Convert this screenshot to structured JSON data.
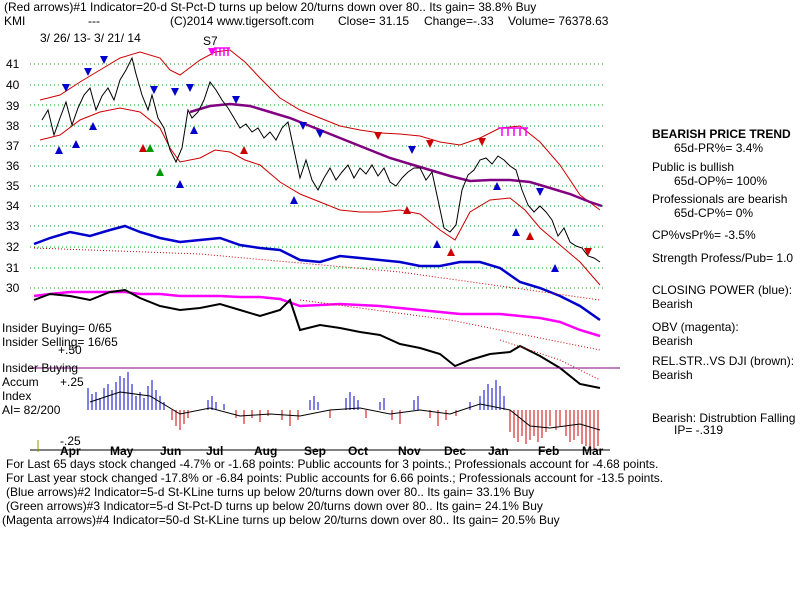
{
  "header": {
    "line1": "(Red arrows)#1 Indicator=20-d St-Pct-D turns up below 20/turns down over 80.. Its gain= 38.8% Buy",
    "ticker": "KMI",
    "dashes": "---",
    "copyright": "(C)2014 www.tigersoft.com",
    "close": "Close=  31.15",
    "change": "Change=-.33",
    "volume": "Volume= 76378.63",
    "date_range": "3/ 26/ 13-  3/ 21/ 14",
    "marker": "S7"
  },
  "side_panel": {
    "title": "BEARISH PRICE TREND",
    "pr": "65d-PR%= 3.4%",
    "public": "Public is bullish",
    "op": "65d-OP%= 100%",
    "pros": "Professionals are bearish",
    "cp": "65d-CP%= 0%",
    "cpvs": "CP%vsPr%= -3.5%",
    "strength": "Strength Profess/Pub= 1.0",
    "closing_power": "CLOSING POWER (blue):",
    "closing_power_val": "Bearish",
    "obv": "OBV (magenta):",
    "obv_val": "Bearish",
    "relstr": "REL.STR..VS DJI (brown):",
    "relstr_val": "Bearish",
    "dist": "Bearish:  Distrubtion Falling",
    "ip": "IP= -.319"
  },
  "left_labels": {
    "insider_buying": "Insider Buying= 0/65",
    "insider_selling": "Insider Selling= 16/65",
    "p50": "+.50",
    "insider_buying2": "Insider Buying",
    "accum": "Accum",
    "p25": "+.25",
    "index": "Index",
    "ai": "AI= 82/200",
    "m25": "-.25"
  },
  "footer": {
    "line1": "For Last 65 days stock changed -4.7% or -1.68 points:  Public accounts for  3 points.;  Professionals account for -4.68 points.",
    "line2": "For Last year stock changed -17.8% or -6.84 points:  Public accounts for  6.66 points.;  Professionals account for -13.5 points.",
    "line3": "(Blue arrows)#2 Indicator=5-d St-KLine turns up below 20/turns down over 80.. Its gain= 33.1% Buy",
    "line4": "(Green arrows)#3 Indicator=5-d St-Pct-D turns up below 20/turns down over 80.. Its gain= 24.1% Buy",
    "line5": "(Magenta arrows)#4 Indicator=50-d St-KLine turns up below 20/turns down over 80.. Its gain= 20.5% Buy"
  },
  "chart_data": {
    "type": "line",
    "y_ticks": [
      "41",
      "40",
      "39",
      "38",
      "37",
      "36",
      "35",
      "34",
      "33",
      "32",
      "31",
      "30"
    ],
    "months": [
      "Apr",
      "May",
      "Jun",
      "Jul",
      "Aug",
      "Sep",
      "Oct",
      "Nov",
      "Dec",
      "Jan",
      "Feb",
      "Mar"
    ],
    "ylim": [
      29.5,
      41.5
    ],
    "price_close_approx": [
      38.0,
      38.8,
      40.3,
      41.0,
      39.2,
      38.4,
      36.0,
      38.5,
      40.0,
      38.8,
      37.5,
      37.0,
      36.2,
      35.2,
      35.0,
      35.0,
      35.8,
      35.2,
      34.5,
      35.5,
      33.0,
      36.5,
      36.2,
      35.5,
      33.8,
      32.4,
      31.2,
      31.1
    ],
    "colors": {
      "price": "#000000",
      "band": "#cc0000",
      "ma": "#800080",
      "closing_power": "#0000cc",
      "obv": "#ff00ff",
      "relstr": "#000000",
      "accum_pos": "#0000cc",
      "accum_neg": "#cc0000",
      "grid": "#00aa00"
    }
  }
}
